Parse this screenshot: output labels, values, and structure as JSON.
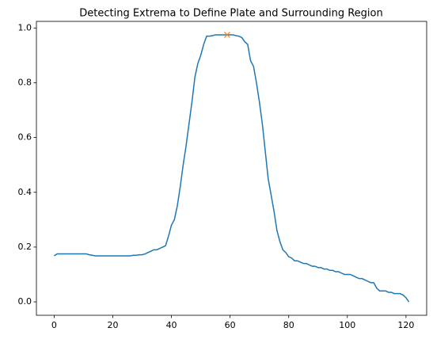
{
  "chart_data": {
    "type": "line",
    "title": "Detecting Extrema to Define Plate and Surrounding Region",
    "x": [
      0,
      1,
      2,
      3,
      4,
      5,
      6,
      7,
      8,
      9,
      10,
      11,
      12,
      13,
      14,
      15,
      16,
      17,
      18,
      19,
      20,
      21,
      22,
      23,
      24,
      25,
      26,
      27,
      28,
      29,
      30,
      31,
      32,
      33,
      34,
      35,
      36,
      37,
      38,
      39,
      40,
      41,
      42,
      43,
      44,
      45,
      46,
      47,
      48,
      49,
      50,
      51,
      52,
      53,
      54,
      55,
      56,
      57,
      58,
      59,
      60,
      61,
      62,
      63,
      64,
      65,
      66,
      67,
      68,
      69,
      70,
      71,
      72,
      73,
      74,
      75,
      76,
      77,
      78,
      79,
      80,
      81,
      82,
      83,
      84,
      85,
      86,
      87,
      88,
      89,
      90,
      91,
      92,
      93,
      94,
      95,
      96,
      97,
      98,
      99,
      100,
      101,
      102,
      103,
      104,
      105,
      106,
      107,
      108,
      109,
      110,
      111,
      112,
      113,
      114,
      115,
      116,
      117,
      118,
      119,
      120,
      121
    ],
    "series": [
      {
        "color": "#1f77b4",
        "values": [
          0.168,
          0.175,
          0.175,
          0.175,
          0.175,
          0.175,
          0.175,
          0.175,
          0.175,
          0.175,
          0.175,
          0.175,
          0.172,
          0.17,
          0.168,
          0.168,
          0.168,
          0.168,
          0.168,
          0.168,
          0.168,
          0.168,
          0.168,
          0.168,
          0.168,
          0.168,
          0.168,
          0.17,
          0.17,
          0.172,
          0.172,
          0.175,
          0.18,
          0.185,
          0.19,
          0.19,
          0.195,
          0.2,
          0.205,
          0.24,
          0.28,
          0.3,
          0.35,
          0.42,
          0.5,
          0.57,
          0.65,
          0.73,
          0.82,
          0.87,
          0.9,
          0.94,
          0.97,
          0.97,
          0.972,
          0.975,
          0.975,
          0.975,
          0.975,
          0.975,
          0.975,
          0.975,
          0.972,
          0.97,
          0.965,
          0.95,
          0.94,
          0.88,
          0.86,
          0.8,
          0.73,
          0.65,
          0.55,
          0.45,
          0.39,
          0.33,
          0.26,
          0.22,
          0.19,
          0.18,
          0.165,
          0.16,
          0.15,
          0.15,
          0.145,
          0.14,
          0.14,
          0.135,
          0.13,
          0.13,
          0.125,
          0.125,
          0.12,
          0.12,
          0.115,
          0.115,
          0.11,
          0.11,
          0.105,
          0.1,
          0.1,
          0.1,
          0.095,
          0.09,
          0.085,
          0.085,
          0.08,
          0.075,
          0.07,
          0.07,
          0.05,
          0.04,
          0.04,
          0.04,
          0.035,
          0.035,
          0.03,
          0.03,
          0.03,
          0.025,
          0.015,
          0
        ]
      }
    ],
    "markers": {
      "x": [
        59
      ],
      "values": [
        0.975
      ],
      "color": "#ff7f0e"
    },
    "xlim": [
      -6.05,
      127.05
    ],
    "xticks": [
      0,
      20,
      40,
      60,
      80,
      100,
      120
    ],
    "ylim": [
      -0.049,
      1.024
    ],
    "yticks": [
      {
        "value": 0,
        "label": "0.0"
      },
      0.2,
      0.4,
      0.6,
      0.8,
      {
        "value": 1,
        "label": "1.0"
      }
    ]
  }
}
